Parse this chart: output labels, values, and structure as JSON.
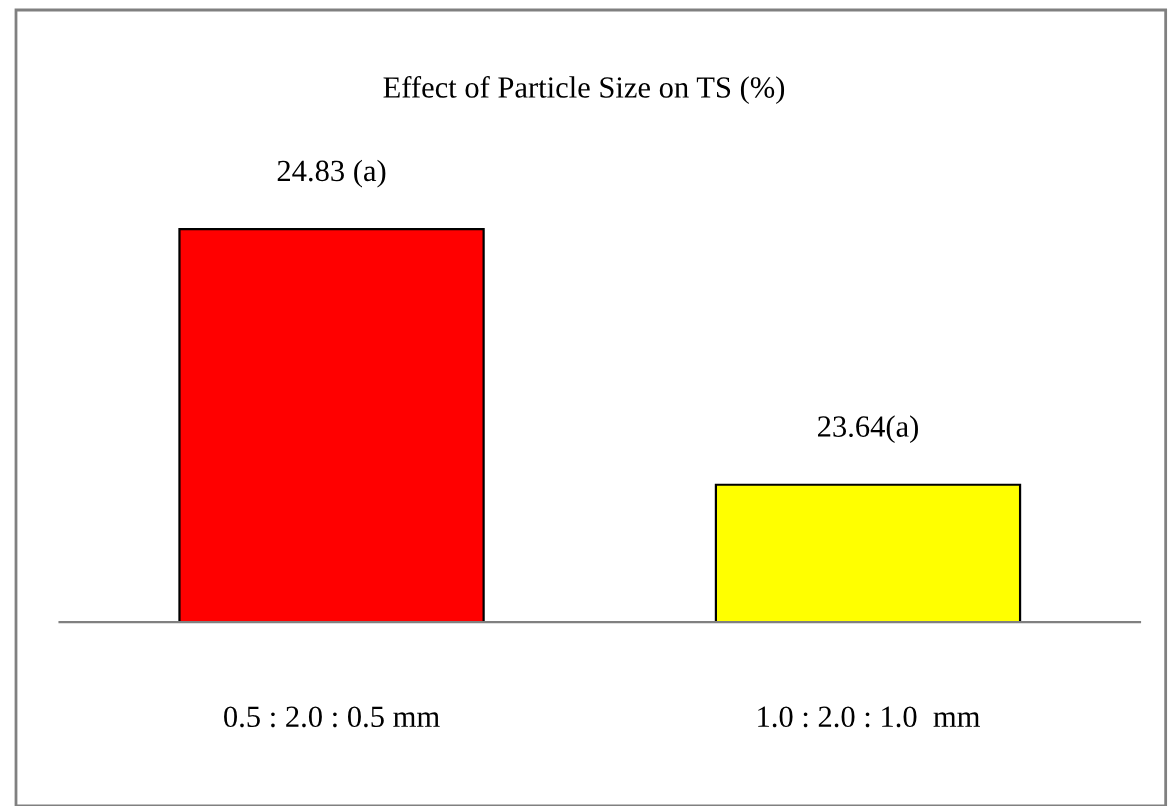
{
  "chart_data": {
    "type": "bar",
    "title": "Effect of Particle Size on TS (%)",
    "categories": [
      "0.5 : 2.0 : 0.5 mm",
      "1.0 : 2.0 : 1.0  mm"
    ],
    "values": [
      24.83,
      23.64
    ],
    "colors": [
      "#ff0000",
      "#ffff00"
    ],
    "value_labels": [
      "24.83 (a)",
      "23.64(a)"
    ],
    "ylim": [
      23.0,
      25.85
    ],
    "tick_labels": "x",
    "grid": false,
    "legend": false
  }
}
